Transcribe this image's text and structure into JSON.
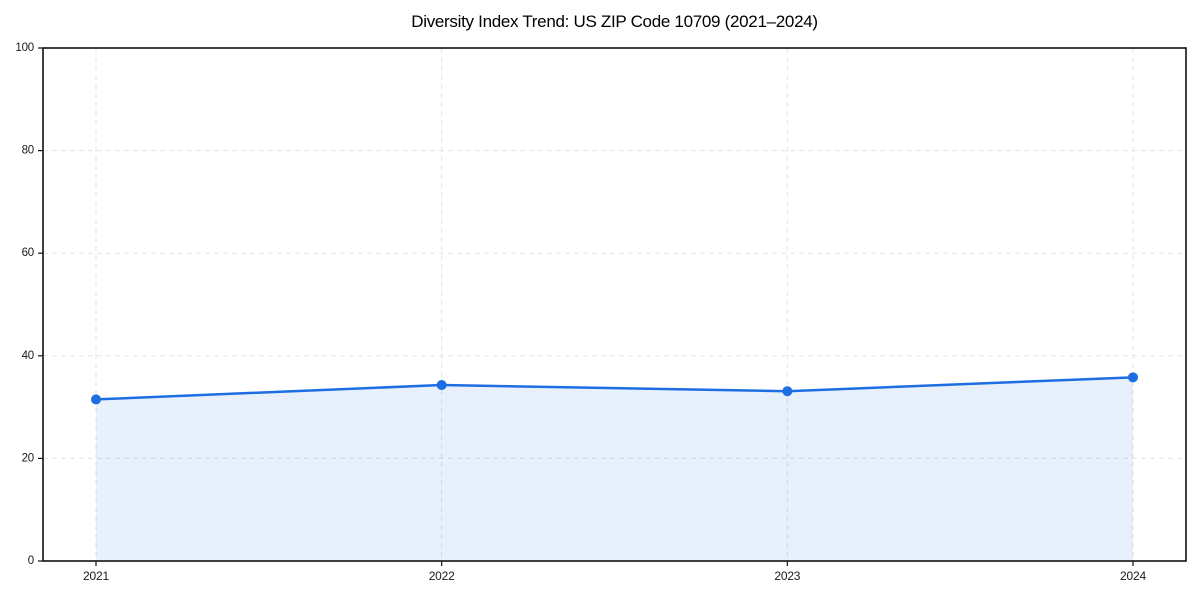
{
  "chart_data": {
    "type": "area",
    "title": "Diversity Index Trend: US ZIP Code 10709 (2021–2024)",
    "x": [
      "2021",
      "2022",
      "2023",
      "2024"
    ],
    "series": [
      {
        "name": "Diversity Index",
        "values": [
          31.5,
          34.3,
          33.1,
          35.8
        ]
      }
    ],
    "xlabel": "",
    "ylabel": "",
    "ylim": [
      0,
      100
    ],
    "yticks": [
      0,
      20,
      40,
      60,
      80,
      100
    ],
    "grid": true,
    "grid_style": "dashed",
    "legend_position": "none",
    "colors": {
      "line": "#1d6ee3",
      "marker": "#1d6ee3",
      "fill": "#1d6ee3",
      "fill_opacity": "0.1",
      "grid": "#e3e3e3",
      "spine": "#111111",
      "tick_label": "#1a1a1a",
      "title": "#000000",
      "background": "#ffffff"
    }
  }
}
